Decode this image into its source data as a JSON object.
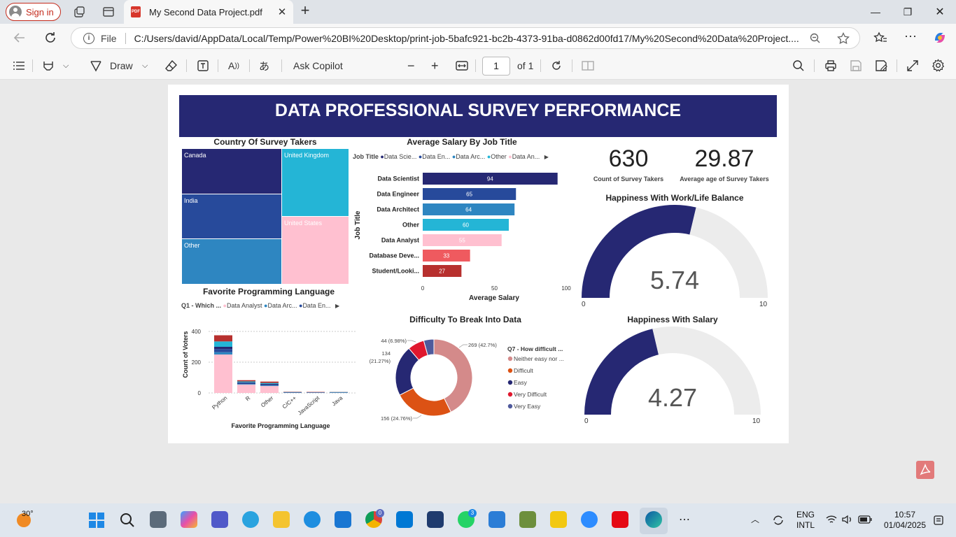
{
  "browser": {
    "sign_in": "Sign in",
    "tab_title": "My Second Data Project.pdf",
    "address_scheme": "File",
    "url": "C:/Users/david/AppData/Local/Temp/Power%20BI%20Desktop/print-job-5bafc921-bc2b-4373-91ba-d0862d00fd17/My%20Second%20Data%20Project...."
  },
  "pdf_toolbar": {
    "draw": "Draw",
    "ask_copilot": "Ask Copilot",
    "page_number": "1",
    "page_of": "of 1"
  },
  "report": {
    "title": "DATA PROFESSIONAL SURVEY PERFORMANCE",
    "country": {
      "title": "Country Of Survey Takers",
      "cells": [
        "Canada",
        "United Kingdom",
        "India",
        "United States",
        "Other"
      ]
    },
    "salary": {
      "title": "Average Salary By Job Title",
      "legend_label": "Job Title",
      "legend": [
        "Data Scie...",
        "Data En...",
        "Data Arc...",
        "Other",
        "Data An..."
      ],
      "ylabel": "Job Title",
      "xlabel": "Average Salary",
      "xticks": [
        "0",
        "50",
        "100"
      ]
    },
    "kpi": {
      "count_value": "630",
      "count_label": "Count of Survey Takers",
      "age_value": "29.87",
      "age_label": "Average age of Survey Takers"
    },
    "wlb": {
      "title": "Happiness With Work/Life Balance",
      "value": "5.74",
      "min": "0",
      "max": "10"
    },
    "sal_happy": {
      "title": "Happiness With Salary",
      "value": "4.27",
      "min": "0",
      "max": "10"
    },
    "lang": {
      "title": "Favorite Programming Language",
      "legend_label": "Q1 - Which ...",
      "legend": [
        "Data Analyst",
        "Data Arc...",
        "Data En..."
      ],
      "ylabel": "Count of Voters",
      "xlabel": "Favorite Programming Language",
      "yticks": [
        "400",
        "200",
        "0"
      ]
    },
    "difficulty": {
      "title": "Difficulty To Break Into Data",
      "legend_title": "Q7 - How difficult ...",
      "legend": [
        "Neither easy nor ...",
        "Difficult",
        "Easy",
        "Very Difficult",
        "Very Easy"
      ],
      "labels": [
        "269 (42.7%)",
        "156 (24.76%)",
        "134",
        "(21.27%)",
        "44 (6.98%)"
      ]
    }
  },
  "chart_data": [
    {
      "type": "bar",
      "title": "Average Salary By Job Title",
      "orientation": "horizontal",
      "categories": [
        "Data Scientist",
        "Data Engineer",
        "Data Architect",
        "Other",
        "Data Analyst",
        "Database Deve...",
        "Student/Looki..."
      ],
      "values": [
        94,
        65,
        64,
        60,
        55,
        33,
        27
      ],
      "colors": [
        "#262873",
        "#274a9b",
        "#2e86c1",
        "#24b5d6",
        "#ffc0d0",
        "#ef5a5f",
        "#b7302e"
      ],
      "xlabel": "Average Salary",
      "ylabel": "Job Title",
      "xlim": [
        0,
        100
      ]
    },
    {
      "type": "bar",
      "title": "Favorite Programming Language",
      "stacked": true,
      "categories": [
        "Python",
        "R",
        "Other",
        "C/C++",
        "JavaScript",
        "Java"
      ],
      "series": [
        {
          "name": "Data Analyst",
          "values": [
            250,
            55,
            45,
            0,
            0,
            0
          ],
          "color": "#ffc0d0"
        },
        {
          "name": "Data Arc...",
          "values": [
            15,
            4,
            4,
            3,
            1,
            2
          ],
          "color": "#2e86c1"
        },
        {
          "name": "Data En...",
          "values": [
            20,
            6,
            6,
            1,
            2,
            1
          ],
          "color": "#274a9b"
        },
        {
          "name": "",
          "values": [
            15,
            4,
            4,
            1,
            1,
            1
          ],
          "color": "#262873"
        },
        {
          "name": "",
          "values": [
            35,
            6,
            6,
            1,
            1,
            2
          ],
          "color": "#24b5d6"
        },
        {
          "name": "",
          "values": [
            40,
            8,
            9,
            2,
            2,
            1
          ],
          "color": "#b7302e"
        }
      ],
      "xlabel": "Favorite Programming Language",
      "ylabel": "Count of Voters",
      "ylim": [
        0,
        400
      ]
    },
    {
      "type": "pie",
      "donut": true,
      "title": "Difficulty To Break Into Data",
      "categories": [
        "Neither easy nor ...",
        "Difficult",
        "Easy",
        "Very Difficult",
        "Very Easy"
      ],
      "values": [
        269,
        156,
        134,
        44,
        27
      ],
      "colors": [
        "#d48a8a",
        "#dc5214",
        "#262873",
        "#e0182e",
        "#4f5a9c"
      ]
    },
    {
      "type": "pie",
      "gauge": true,
      "title": "Happiness With Work/Life Balance",
      "value": 5.74,
      "min": 0,
      "max": 10,
      "colors": [
        "#262873",
        "#ececec"
      ]
    },
    {
      "type": "pie",
      "gauge": true,
      "title": "Happiness With Salary",
      "value": 4.27,
      "min": 0,
      "max": 10,
      "colors": [
        "#262873",
        "#ececec"
      ]
    },
    {
      "type": "heatmap",
      "title": "Country Of Survey Takers",
      "treemap": true,
      "categories": [
        "Canada",
        "United Kingdom",
        "India",
        "United States",
        "Other"
      ],
      "colors": [
        "#262873",
        "#24b5d6",
        "#274a9b",
        "#ffc0d0",
        "#2e86c1"
      ]
    }
  ],
  "taskbar": {
    "weather_temp": "30°",
    "lang": "ENG",
    "layout": "INTL",
    "time": "10:57",
    "date": "01/04/2025",
    "whatsapp_badge": "3",
    "chrome_badge": "0"
  }
}
